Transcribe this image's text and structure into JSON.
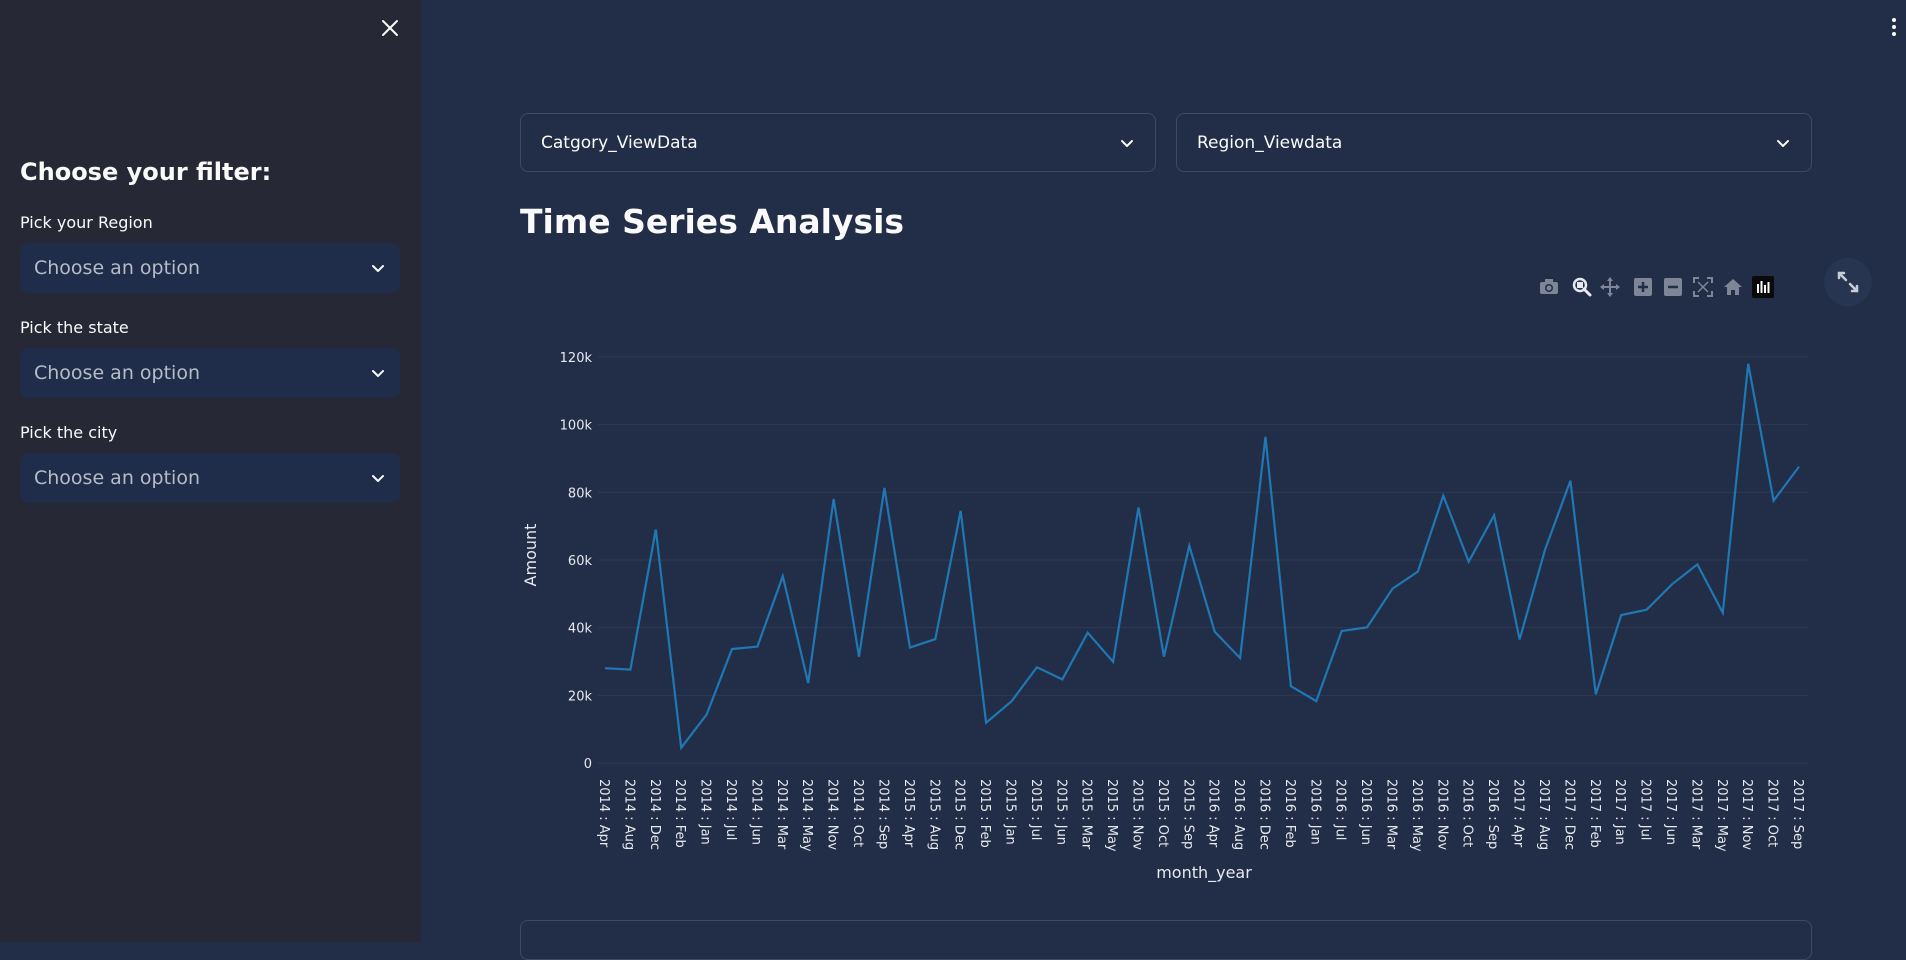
{
  "sidebar": {
    "title": "Choose your filter:",
    "filters": [
      {
        "label": "Pick your Region",
        "placeholder": "Choose an option"
      },
      {
        "label": "Pick the state",
        "placeholder": "Choose an option"
      },
      {
        "label": "Pick the city",
        "placeholder": "Choose an option"
      }
    ]
  },
  "expanders": {
    "category": "Catgory_ViewData",
    "region": "Region_Viewdata"
  },
  "main": {
    "title": "Time Series Analysis"
  },
  "colors": {
    "line": "#1f77b4",
    "grid": "#2e3a52",
    "tick_text": "#e6e9ef"
  },
  "toolbar": {
    "icons": [
      "camera-icon",
      "zoom-icon",
      "pan-icon",
      "zoom-in-icon",
      "zoom-out-icon",
      "autoscale-icon",
      "reset-axes-icon",
      "plotly-logo-icon"
    ]
  },
  "chart_data": {
    "type": "line",
    "xlabel": "month_year",
    "ylabel": "Amount",
    "ylim": [
      0,
      125000
    ],
    "y_ticks": [
      0,
      20000,
      40000,
      60000,
      80000,
      100000,
      120000
    ],
    "y_tick_labels": [
      "0",
      "20k",
      "40k",
      "60k",
      "80k",
      "100k",
      "120k"
    ],
    "categories": [
      "2014 : Apr",
      "2014 : Aug",
      "2014 : Dec",
      "2014 : Feb",
      "2014 : Jan",
      "2014 : Jul",
      "2014 : Jun",
      "2014 : Mar",
      "2014 : May",
      "2014 : Nov",
      "2014 : Oct",
      "2014 : Sep",
      "2015 : Apr",
      "2015 : Aug",
      "2015 : Dec",
      "2015 : Feb",
      "2015 : Jan",
      "2015 : Jul",
      "2015 : Jun",
      "2015 : Mar",
      "2015 : May",
      "2015 : Nov",
      "2015 : Oct",
      "2015 : Sep",
      "2016 : Apr",
      "2016 : Aug",
      "2016 : Dec",
      "2016 : Feb",
      "2016 : Jan",
      "2016 : Jul",
      "2016 : Jun",
      "2016 : Mar",
      "2016 : May",
      "2016 : Nov",
      "2016 : Oct",
      "2016 : Sep",
      "2017 : Apr",
      "2017 : Aug",
      "2017 : Dec",
      "2017 : Feb",
      "2017 : Jan",
      "2017 : Jul",
      "2017 : Jun",
      "2017 : Mar",
      "2017 : May",
      "2017 : Nov",
      "2017 : Oct",
      "2017 : Sep"
    ],
    "values": [
      28000,
      27600,
      69000,
      4500,
      14300,
      33700,
      34400,
      55200,
      23600,
      78000,
      31400,
      81300,
      34100,
      36600,
      74500,
      11900,
      18200,
      28300,
      24700,
      38500,
      29900,
      75500,
      31400,
      64200,
      38800,
      31000,
      96400,
      22700,
      18300,
      39000,
      40100,
      51500,
      56600,
      79000,
      59500,
      73200,
      36500,
      63000,
      83400,
      20300,
      43700,
      45300,
      52800,
      58700,
      44400,
      118000,
      77500,
      87600
    ]
  }
}
